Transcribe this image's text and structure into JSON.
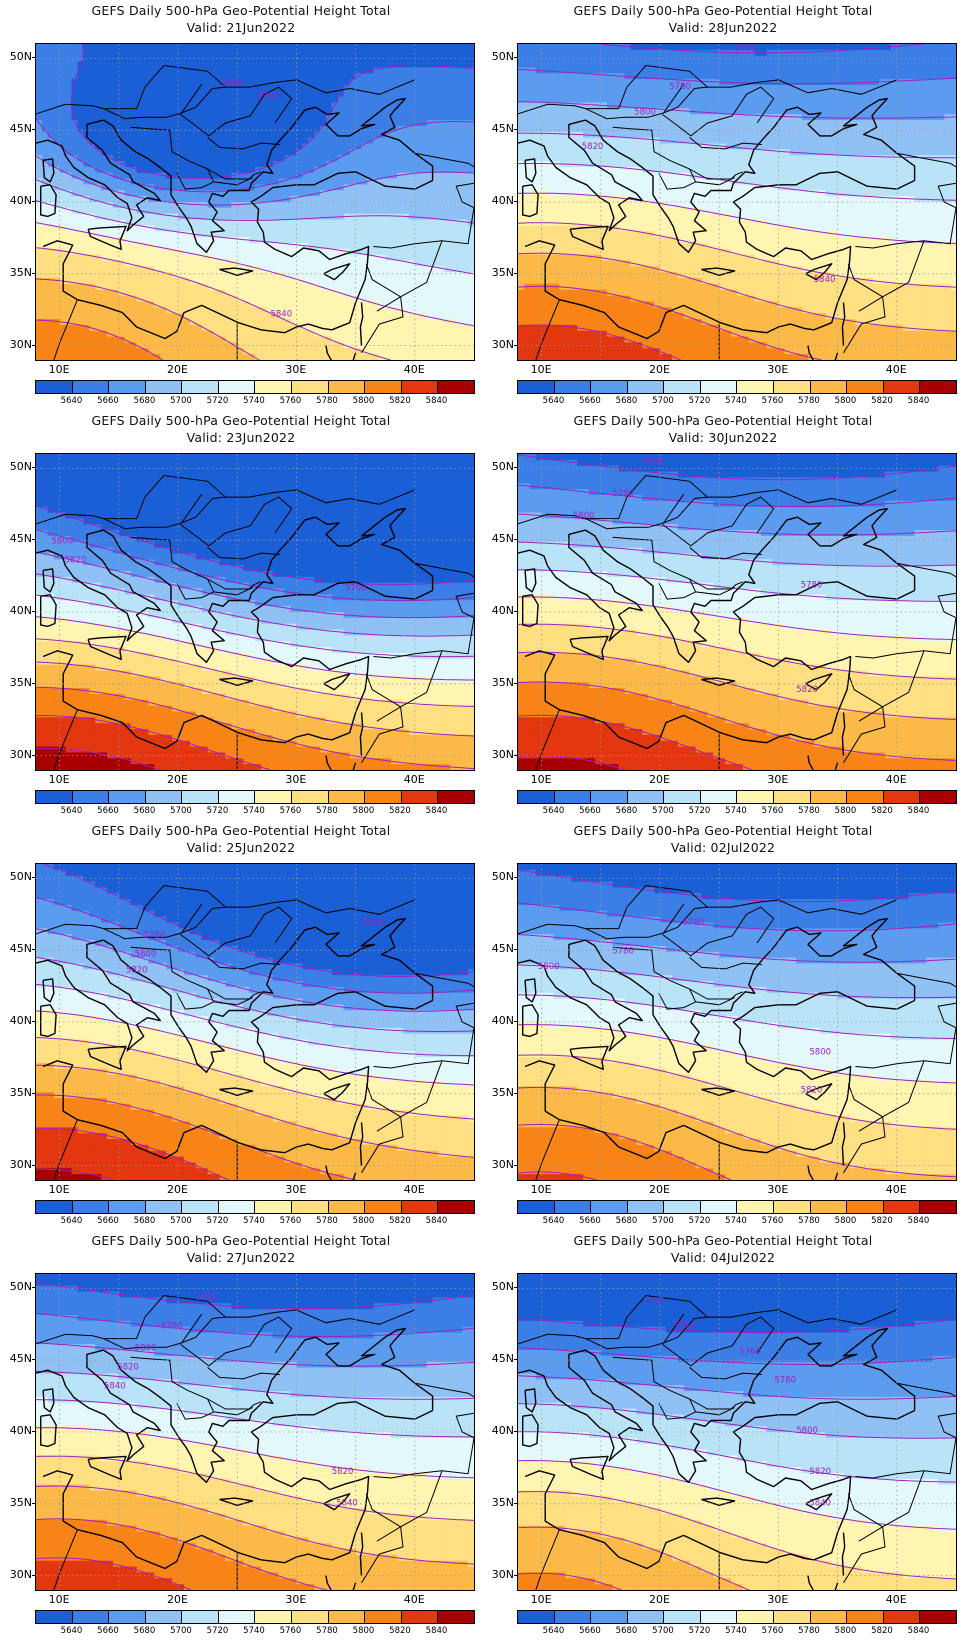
{
  "colorbar": {
    "labels": [
      "5640",
      "5660",
      "5680",
      "5700",
      "5720",
      "5740",
      "5760",
      "5780",
      "5800",
      "5820",
      "5840"
    ],
    "colors": [
      "#1b5fd6",
      "#3a7ee6",
      "#5b9cf0",
      "#8fc1f5",
      "#b9e3f7",
      "#e2f8fb",
      "#fff4b0",
      "#fedf82",
      "#fbb948",
      "#f88417",
      "#e3370f",
      "#a80000"
    ]
  },
  "contour_color": "#a020c0",
  "lat_labels": [
    "50N",
    "45N",
    "40N",
    "35N",
    "30N"
  ],
  "lon_labels": [
    "10E",
    "20E",
    "30E",
    "40E"
  ],
  "panels": [
    {
      "title": "GEFS Daily 500-hPa Geo-Potential Height Total",
      "valid": "Valid: 21Jun2022",
      "contour_labels": [
        "5680",
        "5700",
        "5840"
      ]
    },
    {
      "title": "GEFS Daily 500-hPa Geo-Potential Height Total",
      "valid": "Valid: 28Jun2022",
      "contour_labels": [
        "5760",
        "5780",
        "5800",
        "5820",
        "5840"
      ]
    },
    {
      "title": "GEFS Daily 500-hPa Geo-Potential Height Total",
      "valid": "Valid: 23Jun2022",
      "contour_labels": [
        "5700",
        "5800",
        "5820"
      ]
    },
    {
      "title": "GEFS Daily 500-hPa Geo-Potential Height Total",
      "valid": "Valid: 30Jun2022",
      "contour_labels": [
        "5760",
        "5780",
        "5800",
        "5780",
        "5820"
      ]
    },
    {
      "title": "GEFS Daily 500-hPa Geo-Potential Height Total",
      "valid": "Valid: 25Jun2022",
      "contour_labels": [
        "5680",
        "5780",
        "5800",
        "5820"
      ]
    },
    {
      "title": "GEFS Daily 500-hPa Geo-Potential Height Total",
      "valid": "Valid: 02Jul2022",
      "contour_labels": [
        "5760",
        "5780",
        "5800",
        "5800",
        "5820"
      ]
    },
    {
      "title": "GEFS Daily 500-hPa Geo-Potential Height Total",
      "valid": "Valid: 27Jun2022",
      "contour_labels": [
        "5760",
        "5780",
        "5800",
        "5820",
        "5840",
        "5820",
        "5840"
      ]
    },
    {
      "title": "GEFS Daily 500-hPa Geo-Potential Height Total",
      "valid": "Valid: 04Jul2022",
      "contour_labels": [
        "5720",
        "5740",
        "5760",
        "5780",
        "5800",
        "5820",
        "5840"
      ]
    }
  ]
}
